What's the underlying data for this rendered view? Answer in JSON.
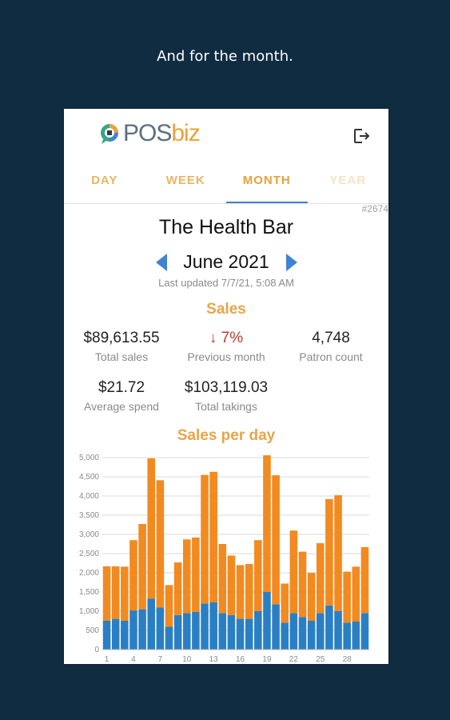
{
  "caption": "And for the month.",
  "app": {
    "logo": {
      "part1": "POS",
      "part2": "biz"
    },
    "build": "#2674"
  },
  "tabs": [
    {
      "label": "DAY"
    },
    {
      "label": "WEEK"
    },
    {
      "label": "MONTH"
    },
    {
      "label": "YEAR"
    }
  ],
  "active_tab": "MONTH",
  "store_name": "The Health Bar",
  "period": "June 2021",
  "last_updated": "Last updated 7/7/21, 5:08 AM",
  "sales": {
    "title": "Sales",
    "stats": [
      {
        "value": "$89,613.55",
        "label": "Total sales"
      },
      {
        "value": "7%",
        "label": "Previous month",
        "trend": "down"
      },
      {
        "value": "4,748",
        "label": "Patron count"
      },
      {
        "value": "$21.72",
        "label": "Average spend"
      },
      {
        "value": "$103,119.03",
        "label": "Total takings"
      }
    ]
  },
  "colors": {
    "accent": "#e8a548",
    "tab_indicator": "#3e83d4",
    "bar_top": "#f28a1f",
    "bar_bottom": "#2a7fc4",
    "negative": "#c0392b"
  },
  "chart_data": {
    "type": "bar",
    "stacked": true,
    "title": "Sales per day",
    "ylim": [
      0,
      5000
    ],
    "y_ticks": [
      "0",
      "500",
      "1,000",
      "1,500",
      "2,000",
      "2,500",
      "3,000",
      "3,500",
      "4,000",
      "4,500",
      "5,000"
    ],
    "x_tick_labels": [
      "1",
      "4",
      "7",
      "10",
      "13",
      "16",
      "19",
      "22",
      "25",
      "28"
    ],
    "categories": [
      "1",
      "2",
      "3",
      "4",
      "5",
      "6",
      "7",
      "8",
      "9",
      "10",
      "11",
      "12",
      "13",
      "14",
      "15",
      "16",
      "17",
      "18",
      "19",
      "20",
      "21",
      "22",
      "23",
      "24",
      "25",
      "26",
      "27",
      "28",
      "29",
      "30"
    ],
    "series": [
      {
        "values": [
          750,
          800,
          750,
          1020,
          1050,
          1330,
          1100,
          600,
          900,
          950,
          980,
          1200,
          1230,
          950,
          900,
          800,
          800,
          1000,
          1500,
          1180,
          700,
          950,
          850,
          750,
          950,
          1150,
          1000,
          700,
          730,
          950
        ]
      },
      {
        "values": [
          1420,
          1370,
          1410,
          1830,
          2220,
          3650,
          3310,
          1080,
          1370,
          1920,
          1940,
          3350,
          3400,
          1800,
          1550,
          1400,
          1430,
          1850,
          3560,
          3360,
          1020,
          2150,
          1700,
          1250,
          1820,
          2770,
          3020,
          1330,
          1430,
          1720
        ]
      }
    ],
    "grid": true
  }
}
